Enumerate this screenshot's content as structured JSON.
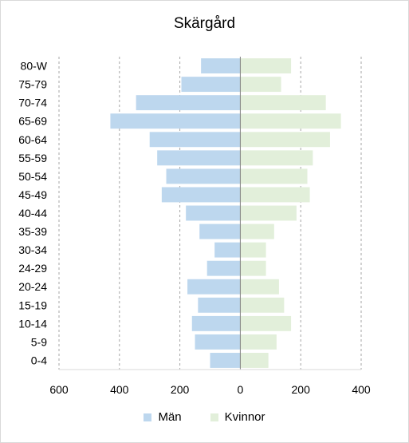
{
  "chart_data": {
    "type": "bar",
    "orientation": "horizontal-population-pyramid",
    "title": "Skärgård",
    "categories": [
      "80-W",
      "75-79",
      "70-74",
      "65-69",
      "60-64",
      "55-59",
      "50-54",
      "45-49",
      "40-44",
      "35-39",
      "30-34",
      "24-29",
      "20-24",
      "15-19",
      "10-14",
      "5-9",
      "0-4"
    ],
    "series": [
      {
        "name": "Män",
        "color": "#bdd7ee",
        "values": [
          130,
          195,
          345,
          430,
          300,
          275,
          245,
          260,
          180,
          135,
          85,
          110,
          175,
          140,
          160,
          150,
          100
        ]
      },
      {
        "name": "Kvinnor",
        "color": "#e2efda",
        "values": [
          168,
          135,
          283,
          333,
          297,
          240,
          222,
          230,
          186,
          112,
          85,
          85,
          128,
          145,
          168,
          120,
          93
        ]
      }
    ],
    "xlim": [
      -600,
      400
    ],
    "xticks": [
      -600,
      -400,
      -200,
      0,
      200,
      400
    ],
    "xtick_labels": [
      "600",
      "400",
      "200",
      "0",
      "200",
      "400"
    ],
    "grid": true,
    "legend_position": "bottom"
  }
}
